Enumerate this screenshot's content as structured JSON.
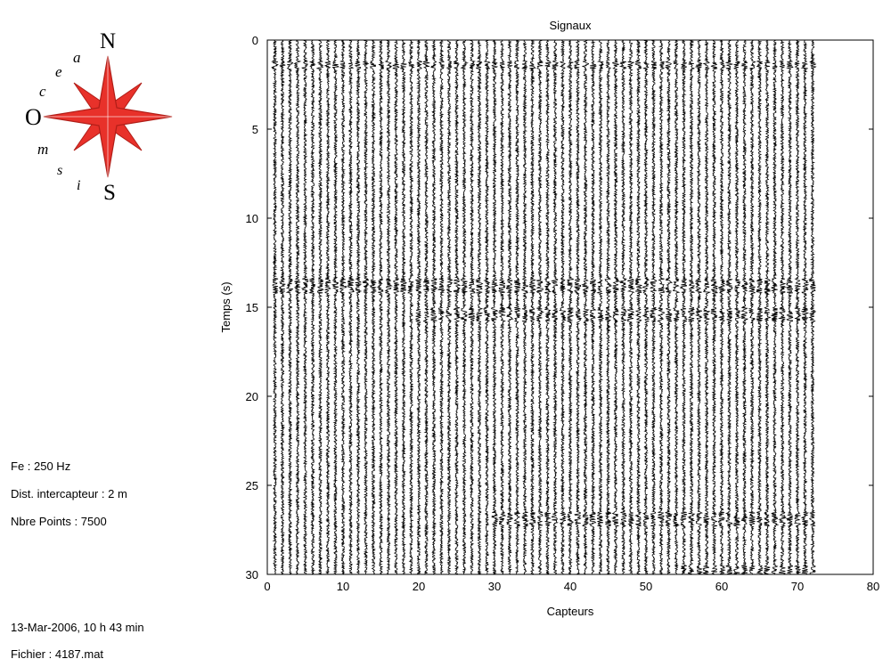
{
  "logo": {
    "letters": [
      "N",
      "S",
      "O",
      "c",
      "e",
      "a",
      "i",
      "s",
      "m"
    ],
    "star_color": "#e8312a",
    "star_outline": "#b01e18"
  },
  "info": {
    "sampling": "Fe : 250 Hz",
    "spacing": "Dist. intercapteur : 2 m",
    "points": "Nbre Points : 7500",
    "date": "13-Mar-2006,  10 h 43 min",
    "file": "Fichier : 4187.mat"
  },
  "chart_data": {
    "type": "line",
    "title": "Signaux",
    "xlabel": "Capteurs",
    "ylabel": "Temps (s)",
    "xlim": [
      0,
      80
    ],
    "ylim": [
      0,
      30
    ],
    "y_inverted": true,
    "xticks": [
      0,
      10,
      20,
      30,
      40,
      50,
      60,
      70,
      80
    ],
    "yticks": [
      0,
      5,
      10,
      15,
      20,
      25,
      30
    ],
    "n_traces": 72,
    "trace_positions": [
      1,
      72
    ],
    "duration_s": 30,
    "trace_color": "#000000",
    "grid": false,
    "events": [
      {
        "t_start": 1.2,
        "t_end": 1.6,
        "capteurs": [
          1,
          72
        ]
      },
      {
        "t_start": 13.4,
        "t_end": 14.2,
        "capteurs": [
          1,
          72
        ]
      },
      {
        "t_start": 15.0,
        "t_end": 15.8,
        "capteurs": [
          20,
          72
        ]
      },
      {
        "t_start": 26.5,
        "t_end": 27.3,
        "capteurs": [
          30,
          72
        ]
      },
      {
        "t_start": 29.5,
        "t_end": 30.0,
        "capteurs": [
          55,
          72
        ]
      }
    ]
  }
}
